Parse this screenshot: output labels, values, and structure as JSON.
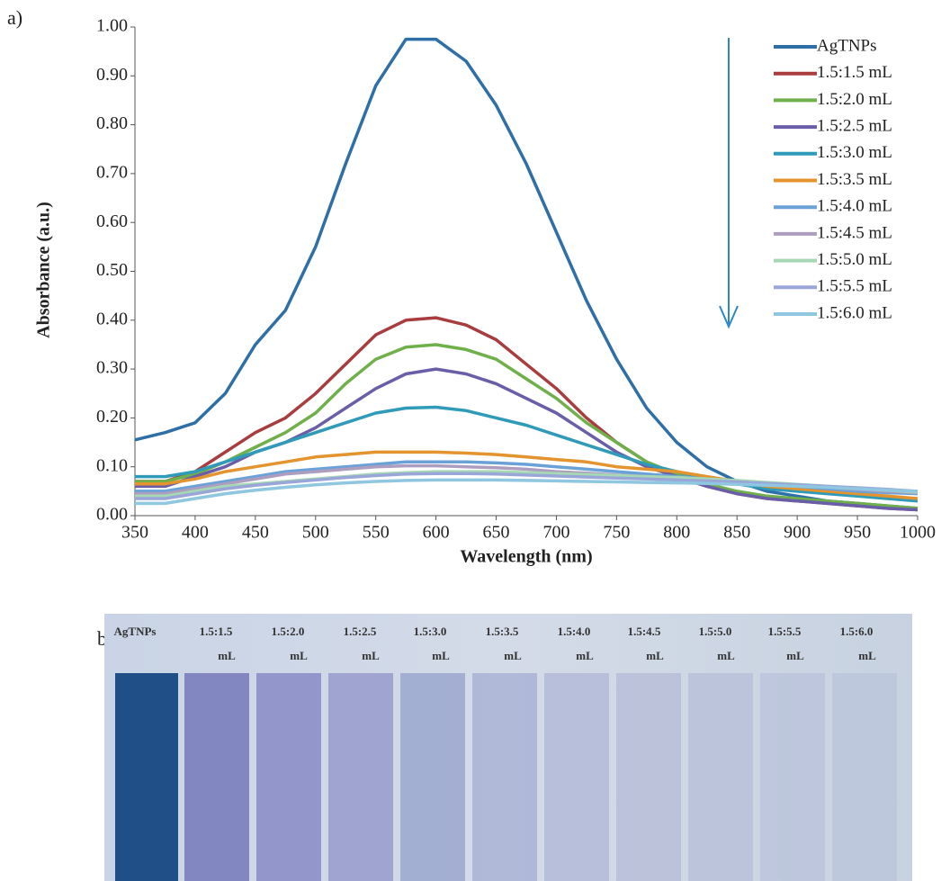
{
  "chart_data": {
    "type": "line",
    "panel_label": "a)",
    "x_label": "Wavelength (nm)",
    "y_label": "Absorbance (a.u.)",
    "x": [
      350,
      375,
      400,
      425,
      450,
      475,
      500,
      525,
      550,
      575,
      600,
      625,
      650,
      675,
      700,
      725,
      750,
      775,
      800,
      825,
      850,
      875,
      900,
      925,
      950,
      975,
      1000
    ],
    "xlim": [
      350,
      1000
    ],
    "xticks": [
      350,
      400,
      450,
      500,
      550,
      600,
      650,
      700,
      750,
      800,
      850,
      900,
      950,
      1000
    ],
    "ylim": [
      0,
      1
    ],
    "yticks": [
      {
        "value": 0,
        "label": "0.00"
      },
      {
        "value": 0.1,
        "label": "0.10"
      },
      {
        "value": 0.2,
        "label": "0.20"
      },
      {
        "value": 0.3,
        "label": "0.30"
      },
      {
        "value": 0.4,
        "label": "0.40"
      },
      {
        "value": 0.5,
        "label": "0.50"
      },
      {
        "value": 0.6,
        "label": "0.60"
      },
      {
        "value": 0.7,
        "label": "0.70"
      },
      {
        "value": 0.8,
        "label": "0.80"
      },
      {
        "value": 0.9,
        "label": "0.90"
      },
      {
        "value": 1,
        "label": "1.00"
      }
    ],
    "grid": false,
    "legend": "top-right",
    "series": [
      {
        "name": "AgTNPs",
        "color": "#2e6fa7",
        "values": [
          0.155,
          0.17,
          0.19,
          0.25,
          0.35,
          0.42,
          0.55,
          0.72,
          0.88,
          0.975,
          0.975,
          0.93,
          0.84,
          0.72,
          0.58,
          0.44,
          0.32,
          0.22,
          0.15,
          0.1,
          0.07,
          0.05,
          0.04,
          0.03,
          0.025,
          0.02,
          0.015
        ]
      },
      {
        "name": "1.5:1.5 mL",
        "color": "#a83c3e",
        "values": [
          0.07,
          0.07,
          0.09,
          0.13,
          0.17,
          0.2,
          0.25,
          0.31,
          0.37,
          0.4,
          0.405,
          0.39,
          0.36,
          0.31,
          0.26,
          0.2,
          0.15,
          0.11,
          0.08,
          0.06,
          0.045,
          0.035,
          0.03,
          0.025,
          0.02,
          0.015,
          0.012
        ]
      },
      {
        "name": "1.5:2.0 mL",
        "color": "#6fb04a",
        "values": [
          0.07,
          0.07,
          0.085,
          0.11,
          0.14,
          0.17,
          0.21,
          0.27,
          0.32,
          0.345,
          0.35,
          0.34,
          0.32,
          0.28,
          0.24,
          0.19,
          0.15,
          0.11,
          0.085,
          0.065,
          0.05,
          0.04,
          0.035,
          0.03,
          0.025,
          0.02,
          0.015
        ]
      },
      {
        "name": "1.5:2.5 mL",
        "color": "#6a5ea8",
        "values": [
          0.06,
          0.06,
          0.08,
          0.1,
          0.13,
          0.15,
          0.18,
          0.22,
          0.26,
          0.29,
          0.3,
          0.29,
          0.27,
          0.24,
          0.21,
          0.17,
          0.13,
          0.1,
          0.08,
          0.06,
          0.045,
          0.035,
          0.03,
          0.025,
          0.02,
          0.015,
          0.012
        ]
      },
      {
        "name": "1.5:3.0 mL",
        "color": "#2f9bb8",
        "values": [
          0.08,
          0.08,
          0.09,
          0.11,
          0.13,
          0.15,
          0.17,
          0.19,
          0.21,
          0.22,
          0.222,
          0.215,
          0.2,
          0.185,
          0.165,
          0.145,
          0.125,
          0.105,
          0.09,
          0.075,
          0.065,
          0.055,
          0.05,
          0.045,
          0.04,
          0.035,
          0.03
        ]
      },
      {
        "name": "1.5:3.5 mL",
        "color": "#e3942f",
        "values": [
          0.065,
          0.065,
          0.075,
          0.09,
          0.1,
          0.11,
          0.12,
          0.125,
          0.13,
          0.13,
          0.13,
          0.128,
          0.125,
          0.12,
          0.115,
          0.11,
          0.1,
          0.095,
          0.09,
          0.08,
          0.07,
          0.06,
          0.055,
          0.05,
          0.045,
          0.04,
          0.035
        ]
      },
      {
        "name": "1.5:4.0 mL",
        "color": "#6aa2d8",
        "values": [
          0.05,
          0.05,
          0.06,
          0.07,
          0.08,
          0.09,
          0.095,
          0.1,
          0.105,
          0.11,
          0.11,
          0.11,
          0.108,
          0.105,
          0.1,
          0.095,
          0.09,
          0.085,
          0.08,
          0.075,
          0.07,
          0.065,
          0.06,
          0.055,
          0.05,
          0.047,
          0.045
        ]
      },
      {
        "name": "1.5:4.5 mL",
        "color": "#ad9ec0",
        "values": [
          0.045,
          0.045,
          0.055,
          0.065,
          0.075,
          0.085,
          0.09,
          0.095,
          0.1,
          0.102,
          0.102,
          0.1,
          0.098,
          0.095,
          0.09,
          0.087,
          0.083,
          0.08,
          0.077,
          0.073,
          0.07,
          0.066,
          0.062,
          0.058,
          0.054,
          0.05,
          0.047
        ]
      },
      {
        "name": "1.5:5.0 mL",
        "color": "#a6d8b4",
        "values": [
          0.04,
          0.04,
          0.05,
          0.06,
          0.065,
          0.07,
          0.075,
          0.08,
          0.085,
          0.088,
          0.09,
          0.09,
          0.09,
          0.088,
          0.086,
          0.084,
          0.082,
          0.08,
          0.078,
          0.075,
          0.072,
          0.068,
          0.064,
          0.06,
          0.056,
          0.052,
          0.048
        ]
      },
      {
        "name": "1.5:5.5 mL",
        "color": "#9aa6d8",
        "values": [
          0.035,
          0.035,
          0.045,
          0.055,
          0.062,
          0.068,
          0.073,
          0.078,
          0.082,
          0.085,
          0.086,
          0.086,
          0.085,
          0.083,
          0.081,
          0.079,
          0.077,
          0.075,
          0.073,
          0.071,
          0.069,
          0.066,
          0.063,
          0.06,
          0.057,
          0.054,
          0.05
        ]
      },
      {
        "name": "1.5:6.0 mL",
        "color": "#8fc6e0",
        "values": [
          0.025,
          0.025,
          0.035,
          0.045,
          0.052,
          0.058,
          0.063,
          0.067,
          0.07,
          0.072,
          0.073,
          0.073,
          0.073,
          0.072,
          0.071,
          0.07,
          0.069,
          0.068,
          0.067,
          0.066,
          0.064,
          0.062,
          0.06,
          0.058,
          0.055,
          0.052,
          0.05
        ]
      }
    ]
  },
  "photo": {
    "panel_label": "b)",
    "labels": [
      [
        "AgTNPs"
      ],
      [
        "1.5:1.5",
        "mL"
      ],
      [
        "1.5:2.0",
        "mL"
      ],
      [
        "1.5:2.5",
        "mL"
      ],
      [
        "1.5:3.0",
        "mL"
      ],
      [
        "1.5:3.5",
        "mL"
      ],
      [
        "1.5:4.0",
        "mL"
      ],
      [
        "1.5:4.5",
        "mL"
      ],
      [
        "1.5:5.0",
        "mL"
      ],
      [
        "1.5:5.5",
        "mL"
      ],
      [
        "1.5:6.0",
        "mL"
      ]
    ]
  }
}
